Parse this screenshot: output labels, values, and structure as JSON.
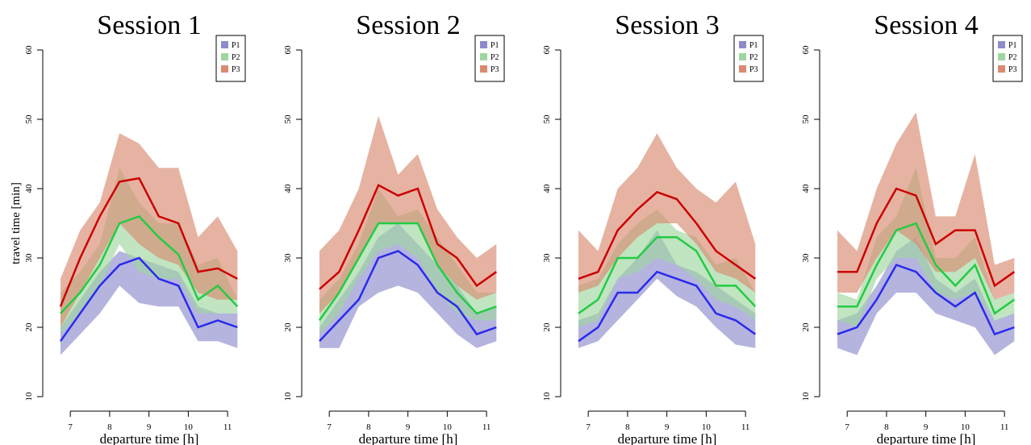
{
  "chart_data": [
    {
      "type": "line",
      "title": "Session 1",
      "x_label": "departure time [h]",
      "y_label": "travel time [min]",
      "x": [
        6.75,
        7.25,
        7.75,
        8.25,
        8.75,
        9.25,
        9.75,
        10.25,
        10.75,
        11.25
      ],
      "xlim": [
        6.5,
        11.5
      ],
      "xticks": [
        7,
        8,
        9,
        10,
        11
      ],
      "ylim": [
        10,
        60
      ],
      "yticks": [
        10,
        20,
        30,
        40,
        50,
        60
      ],
      "legend": "topright",
      "series": [
        {
          "name": "P1",
          "color": "#8c8ccc",
          "line_color": "#2a2aee",
          "values": [
            18,
            22,
            26,
            29,
            30,
            27,
            26,
            20,
            21,
            20
          ],
          "lower": [
            16,
            19,
            22,
            26,
            23.5,
            23,
            23,
            18,
            18,
            17
          ],
          "upper": [
            20,
            24,
            28,
            31,
            30,
            29,
            28,
            23,
            22,
            22
          ]
        },
        {
          "name": "P2",
          "color": "#9fd69f",
          "line_color": "#22cc44",
          "values": [
            22,
            25,
            29,
            35,
            36,
            33,
            30.5,
            24,
            26,
            23
          ],
          "lower": [
            19,
            22,
            26,
            32,
            28,
            27,
            27,
            22,
            22,
            22
          ],
          "upper": [
            25,
            28,
            32,
            43,
            38,
            35,
            35,
            29,
            30,
            24
          ]
        },
        {
          "name": "P3",
          "color": "#d98a70",
          "line_color": "#cc0000",
          "values": [
            23,
            30,
            36,
            41,
            41.5,
            36,
            35,
            28,
            28.5,
            27
          ],
          "lower": [
            20,
            25,
            30,
            35,
            32,
            30,
            29,
            25,
            24,
            24
          ],
          "upper": [
            27,
            34,
            38,
            48,
            46.5,
            43,
            43,
            33,
            36,
            31
          ]
        }
      ]
    },
    {
      "type": "line",
      "title": "Session 2",
      "x_label": "departure time [h]",
      "x": [
        6.75,
        7.25,
        7.75,
        8.25,
        8.75,
        9.25,
        9.75,
        10.25,
        10.75,
        11.25
      ],
      "xlim": [
        6.5,
        11.5
      ],
      "xticks": [
        7,
        8,
        9,
        10,
        11
      ],
      "ylim": [
        10,
        60
      ],
      "yticks": [
        10,
        20,
        30,
        40,
        50,
        60
      ],
      "legend": "topright",
      "series": [
        {
          "name": "P1",
          "color": "#8c8ccc",
          "line_color": "#2a2aee",
          "values": [
            18,
            21,
            24,
            30,
            31,
            29,
            25,
            23,
            19,
            20
          ],
          "lower": [
            17,
            17,
            23,
            25,
            26,
            25,
            22,
            19,
            17,
            18
          ],
          "upper": [
            20,
            24,
            28,
            33,
            35,
            32,
            29,
            26,
            22,
            23
          ]
        },
        {
          "name": "P2",
          "color": "#9fd69f",
          "line_color": "#22cc44",
          "values": [
            21,
            25,
            30,
            35,
            35,
            35,
            29,
            25,
            22,
            23
          ],
          "lower": [
            19,
            22,
            27,
            31,
            32,
            30,
            25,
            22,
            21,
            21
          ],
          "upper": [
            24,
            27,
            32,
            40,
            36,
            37,
            33,
            29,
            25,
            25
          ]
        },
        {
          "name": "P3",
          "color": "#d98a70",
          "line_color": "#cc0000",
          "values": [
            25.5,
            28,
            34,
            40.5,
            39,
            40,
            32,
            30,
            26,
            28
          ],
          "lower": [
            22,
            25,
            30,
            35,
            35,
            35,
            29,
            26,
            24,
            25
          ],
          "upper": [
            31,
            34,
            40,
            50.5,
            42,
            45,
            37,
            33,
            30,
            32
          ]
        }
      ]
    },
    {
      "type": "line",
      "title": "Session 3",
      "x_label": "departure time [h]",
      "x": [
        6.75,
        7.25,
        7.75,
        8.25,
        8.75,
        9.25,
        9.75,
        10.25,
        10.75,
        11.25
      ],
      "xlim": [
        6.5,
        11.5
      ],
      "xticks": [
        7,
        8,
        9,
        10,
        11
      ],
      "ylim": [
        10,
        60
      ],
      "yticks": [
        10,
        20,
        30,
        40,
        50,
        60
      ],
      "legend": "topright",
      "series": [
        {
          "name": "P1",
          "color": "#8c8ccc",
          "line_color": "#2a2aee",
          "values": [
            18,
            20,
            25,
            25,
            28,
            27,
            26,
            22,
            21,
            19
          ],
          "lower": [
            17,
            18,
            21,
            24,
            27,
            24.5,
            23,
            20,
            17.5,
            17
          ],
          "upper": [
            21,
            22,
            27,
            30,
            34,
            29,
            28,
            26,
            24,
            22
          ]
        },
        {
          "name": "P2",
          "color": "#9fd69f",
          "line_color": "#22cc44",
          "values": [
            22,
            24,
            30,
            30,
            33,
            33,
            31,
            26,
            26,
            23
          ],
          "lower": [
            20,
            21,
            27,
            28,
            30,
            29,
            27,
            24,
            23,
            21
          ],
          "upper": [
            26,
            27,
            32,
            35,
            37,
            34,
            33,
            29,
            30,
            25
          ]
        },
        {
          "name": "P3",
          "color": "#d98a70",
          "line_color": "#cc0000",
          "values": [
            27,
            28,
            34,
            37,
            39.5,
            38.5,
            35,
            31,
            29,
            27
          ],
          "lower": [
            25,
            26,
            30,
            33,
            35,
            35,
            32,
            28,
            27,
            25
          ],
          "upper": [
            34,
            31,
            40,
            43,
            48,
            43,
            40,
            38,
            41,
            32
          ]
        }
      ]
    },
    {
      "type": "line",
      "title": "Session 4",
      "x_label": "departure time [h]",
      "x": [
        6.75,
        7.25,
        7.75,
        8.25,
        8.75,
        9.25,
        9.75,
        10.25,
        10.75,
        11.25
      ],
      "xlim": [
        6.5,
        11.5
      ],
      "xticks": [
        7,
        8,
        9,
        10,
        11
      ],
      "ylim": [
        10,
        60
      ],
      "yticks": [
        10,
        20,
        30,
        40,
        50,
        60
      ],
      "legend": "topright",
      "series": [
        {
          "name": "P1",
          "color": "#8c8ccc",
          "line_color": "#2a2aee",
          "values": [
            19,
            20,
            24,
            29,
            28,
            25,
            23,
            25,
            19,
            20
          ],
          "lower": [
            17,
            16,
            22,
            25,
            25,
            22,
            21,
            20,
            16,
            18
          ],
          "upper": [
            21,
            22,
            26,
            31,
            33,
            27,
            25,
            27,
            21,
            22
          ]
        },
        {
          "name": "P2",
          "color": "#9fd69f",
          "line_color": "#22cc44",
          "values": [
            23,
            23,
            29,
            34,
            35,
            29,
            26,
            29,
            22,
            24
          ],
          "lower": [
            21,
            20,
            27,
            30,
            30,
            25,
            24,
            25,
            21,
            22
          ],
          "upper": [
            25,
            24,
            33,
            36,
            43,
            30,
            30,
            33,
            24,
            25
          ]
        },
        {
          "name": "P3",
          "color": "#d98a70",
          "line_color": "#cc0000",
          "values": [
            28,
            28,
            35,
            40,
            39,
            32,
            34,
            34,
            26,
            28
          ],
          "lower": [
            25,
            25,
            30,
            34,
            32,
            28,
            28,
            30,
            24,
            25
          ],
          "upper": [
            34,
            31,
            40,
            46.5,
            51,
            36,
            36,
            45,
            29,
            30
          ]
        }
      ]
    }
  ]
}
